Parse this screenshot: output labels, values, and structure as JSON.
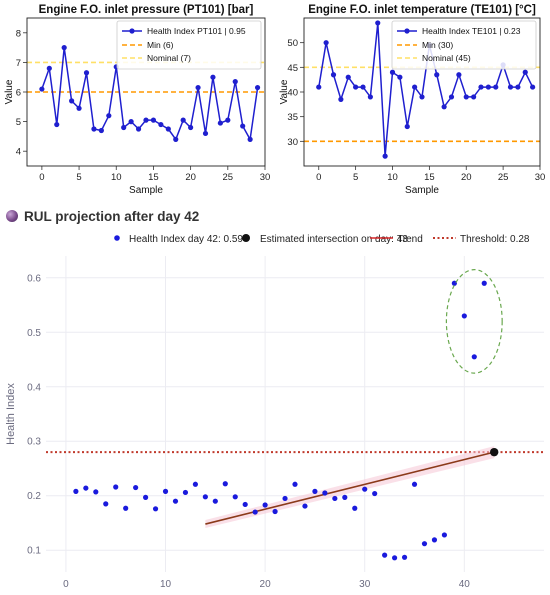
{
  "chart_data": [
    {
      "type": "line",
      "title": "Engine F.O. inlet pressure (PT101) [bar]",
      "xlabel": "Sample",
      "ylabel": "Value",
      "xlim": [
        -2,
        30
      ],
      "ylim": [
        3.5,
        8.5
      ],
      "xticks": [
        "0",
        "5",
        "10",
        "15",
        "20",
        "25",
        "30"
      ],
      "yticks": [
        "4",
        "5",
        "6",
        "7",
        "8"
      ],
      "legend_position": "top-right",
      "series": [
        {
          "name": "Health Index PT101 | 0.95",
          "color": "#1f1fcf",
          "x": [
            0,
            1,
            2,
            3,
            4,
            5,
            6,
            7,
            8,
            9,
            10,
            11,
            12,
            13,
            14,
            15,
            16,
            17,
            18,
            19,
            20,
            21,
            22,
            23,
            24,
            25,
            26,
            27,
            28,
            29
          ],
          "values": [
            6.1,
            6.8,
            4.9,
            7.5,
            5.7,
            5.45,
            6.65,
            4.75,
            4.7,
            5.2,
            6.85,
            4.8,
            5.0,
            4.75,
            5.05,
            5.05,
            4.9,
            4.75,
            4.4,
            5.05,
            4.8,
            6.15,
            4.6,
            6.5,
            4.95,
            5.05,
            6.35,
            4.85,
            4.4,
            6.15
          ]
        }
      ],
      "reference_lines": [
        {
          "name": "Min (6)",
          "value": 6,
          "color": "#ff9900"
        },
        {
          "name": "Nominal (7)",
          "value": 7,
          "color": "#ffe066"
        }
      ]
    },
    {
      "type": "line",
      "title": "Engine F.O. inlet temperature (TE101) [°C]",
      "xlabel": "Sample",
      "ylabel": "Value",
      "xlim": [
        -2,
        30
      ],
      "ylim": [
        25,
        55
      ],
      "xticks": [
        "0",
        "5",
        "10",
        "15",
        "20",
        "25",
        "30"
      ],
      "yticks": [
        "30",
        "35",
        "40",
        "45",
        "50"
      ],
      "legend_position": "top-right",
      "series": [
        {
          "name": "Health Index TE101 | 0.23",
          "color": "#1f1fcf",
          "x": [
            0,
            1,
            2,
            3,
            4,
            5,
            6,
            7,
            8,
            9,
            10,
            11,
            12,
            13,
            14,
            15,
            16,
            17,
            18,
            19,
            20,
            21,
            22,
            23,
            24,
            25,
            26,
            27,
            28,
            29
          ],
          "values": [
            41,
            50,
            43.5,
            38.5,
            43,
            41,
            41,
            39,
            54,
            27,
            44,
            43,
            33,
            41,
            39,
            49.5,
            43.5,
            37,
            39,
            43.5,
            39,
            39,
            41,
            41,
            41,
            45.5,
            41,
            41,
            44,
            41
          ]
        }
      ],
      "reference_lines": [
        {
          "name": "Min (30)",
          "value": 30,
          "color": "#ff9900"
        },
        {
          "name": "Nominal (45)",
          "value": 45,
          "color": "#ffe066"
        }
      ]
    },
    {
      "type": "scatter",
      "title": "RUL projection after day 42",
      "xlabel": "Day",
      "ylabel": "Health Index",
      "xlim": [
        -2,
        48
      ],
      "ylim": [
        0.06,
        0.64
      ],
      "xticks": [
        "0",
        "10",
        "20",
        "30",
        "40"
      ],
      "yticks": [
        "0.1",
        "0.2",
        "0.3",
        "0.4",
        "0.5",
        "0.6"
      ],
      "legend_position": "top",
      "grid": true,
      "legend": {
        "points": "Health Index day 42: 0.59",
        "intersection": "Estimated intersection on day: 43",
        "trend": "Trend",
        "threshold": "Threshold: 0.28"
      },
      "points": {
        "x": [
          1,
          2,
          3,
          4,
          5,
          6,
          7,
          8,
          9,
          10,
          11,
          12,
          13,
          14,
          15,
          16,
          17,
          18,
          19,
          20,
          21,
          22,
          23,
          24,
          25,
          26,
          27,
          28,
          29,
          30,
          31,
          32,
          33,
          34,
          35,
          36,
          37,
          38,
          39,
          40,
          41,
          42
        ],
        "values": [
          0.208,
          0.214,
          0.207,
          0.185,
          0.216,
          0.177,
          0.215,
          0.197,
          0.176,
          0.208,
          0.19,
          0.206,
          0.221,
          0.198,
          0.19,
          0.222,
          0.198,
          0.184,
          0.17,
          0.183,
          0.171,
          0.195,
          0.221,
          0.181,
          0.208,
          0.205,
          0.195,
          0.197,
          0.177,
          0.212,
          0.204,
          0.091,
          0.086,
          0.087,
          0.221,
          0.112,
          0.119,
          0.128,
          0.59,
          0.53,
          0.455,
          0.59
        ],
        "color": "#1a1add"
      },
      "trend": {
        "x": [
          14,
          43
        ],
        "values": [
          0.148,
          0.28
        ],
        "color": "#8b3a1a"
      },
      "threshold": {
        "value": 0.28,
        "color": "#c0392b"
      },
      "intersection": {
        "x": 43,
        "value": 0.28
      },
      "highlight_ellipse": {
        "cx": 41,
        "cy": 0.52,
        "rx": 2.8,
        "ry": 0.095,
        "color": "#6aa84f"
      }
    }
  ]
}
